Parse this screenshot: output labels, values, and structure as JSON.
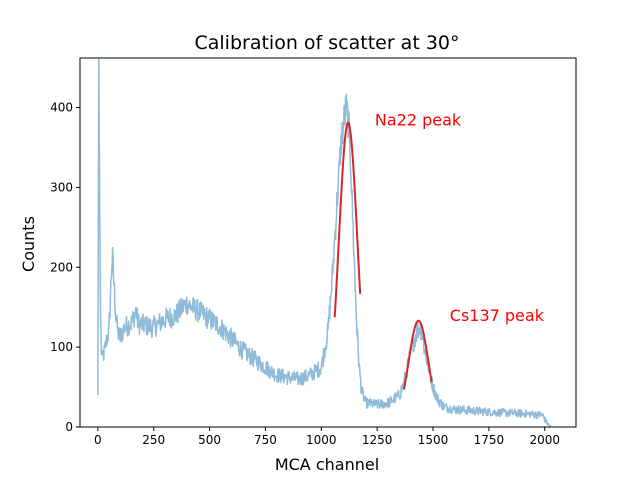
{
  "chart_data": {
    "type": "line",
    "title": "Calibration of scatter at 30°",
    "xlabel": "MCA channel",
    "ylabel": "Counts",
    "xlim": [
      -80,
      2140
    ],
    "ylim": [
      0,
      462
    ],
    "xticks": [
      0,
      250,
      500,
      750,
      1000,
      1250,
      1500,
      1750,
      2000
    ],
    "yticks": [
      0,
      100,
      200,
      300,
      400
    ],
    "grid": false,
    "colors": {
      "spectrum": "#8fbbd9",
      "fit": "#d62728",
      "annotation": "#ff0000"
    },
    "series": [
      {
        "role": "spectrum",
        "x": [
          0,
          4,
          8,
          12,
          16,
          20,
          25,
          30,
          40,
          50,
          60,
          65,
          70,
          80,
          90,
          100,
          120,
          150,
          170,
          180,
          200,
          250,
          300,
          350,
          380,
          400,
          420,
          450,
          500,
          550,
          600,
          650,
          700,
          750,
          800,
          850,
          900,
          950,
          1000,
          1030,
          1050,
          1070,
          1090,
          1100,
          1110,
          1120,
          1130,
          1140,
          1150,
          1160,
          1170,
          1180,
          1200,
          1250,
          1300,
          1350,
          1370,
          1390,
          1410,
          1430,
          1440,
          1450,
          1460,
          1480,
          1500,
          1520,
          1550,
          1600,
          1700,
          1800,
          1900,
          1990,
          2000,
          2010,
          2020,
          2030
        ],
        "y": [
          40,
          460,
          280,
          140,
          95,
          85,
          90,
          95,
          110,
          120,
          190,
          215,
          190,
          140,
          118,
          112,
          125,
          130,
          145,
          130,
          128,
          125,
          135,
          140,
          150,
          155,
          150,
          145,
          135,
          125,
          110,
          95,
          85,
          75,
          65,
          62,
          60,
          65,
          75,
          120,
          190,
          280,
          360,
          380,
          400,
          385,
          345,
          265,
          190,
          120,
          75,
          45,
          30,
          28,
          30,
          40,
          55,
          80,
          105,
          120,
          125,
          120,
          100,
          75,
          50,
          35,
          25,
          22,
          20,
          18,
          17,
          15,
          10,
          5,
          2,
          0
        ]
      },
      {
        "role": "fit",
        "name": "Na22 peak",
        "mean": 1120,
        "amplitude": 381,
        "sigma": 42,
        "x_range": [
          1060,
          1175
        ]
      },
      {
        "role": "fit",
        "name": "Cs137 peak",
        "mean": 1435,
        "amplitude": 133,
        "sigma": 45,
        "x_range": [
          1370,
          1495
        ]
      }
    ],
    "annotations": [
      {
        "text": "Na22 peak",
        "x": 1240,
        "y": 385
      },
      {
        "text": "Cs137 peak",
        "x": 1575,
        "y": 140
      }
    ]
  }
}
